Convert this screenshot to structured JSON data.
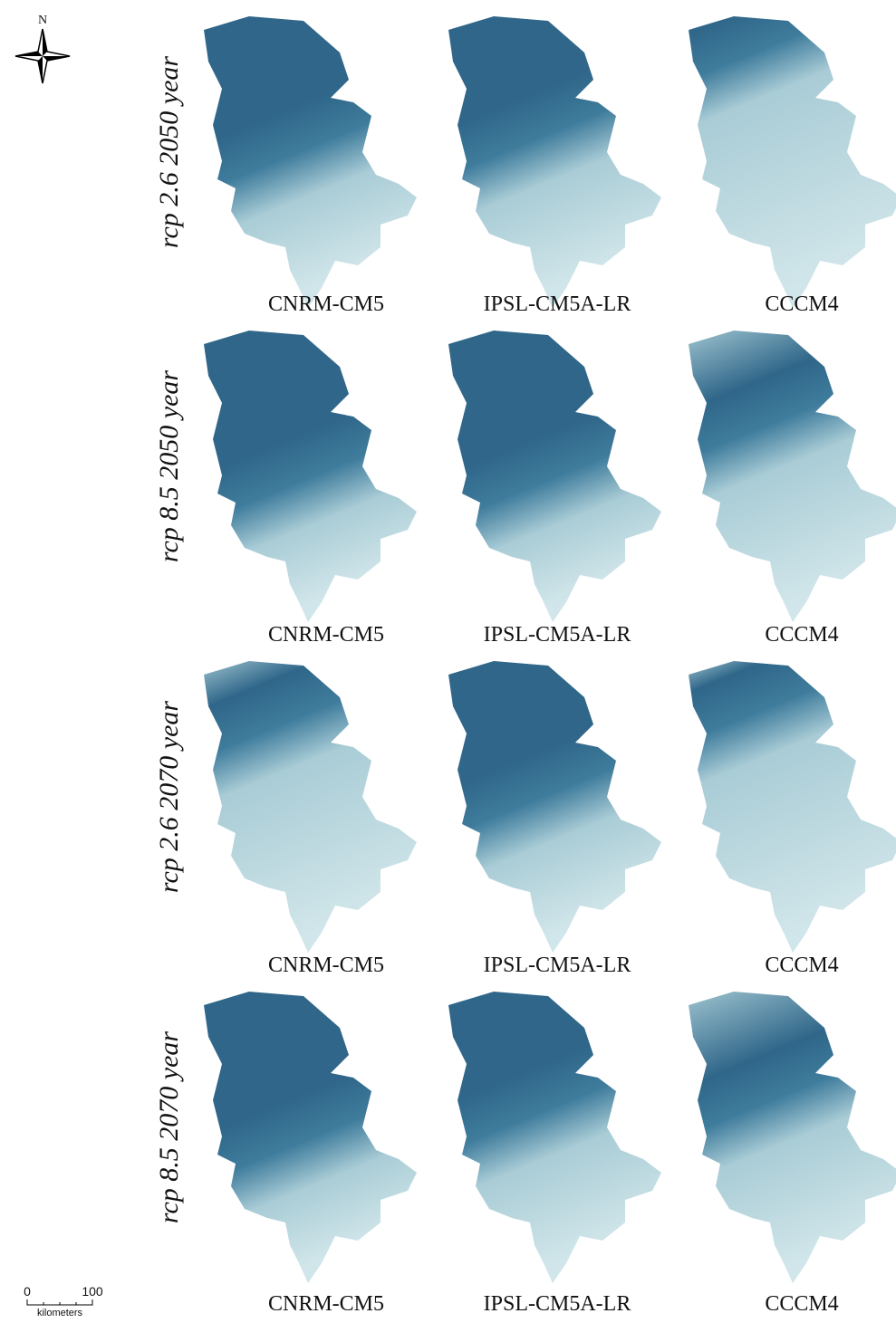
{
  "compass": {
    "label": "N"
  },
  "scale_bar": {
    "start": "0",
    "end": "100",
    "unit": "kilometers"
  },
  "rows": [
    {
      "label": "rcp 2.6 2050 year",
      "models": [
        "CNRM-CM5",
        "IPSL-CM5A-LR",
        "CCCM4"
      ]
    },
    {
      "label": "rcp 8.5 2050 year",
      "models": [
        "CNRM-CM5",
        "IPSL-CM5A-LR",
        "CCCM4"
      ]
    },
    {
      "label": "rcp 2.6 2070 year",
      "models": [
        "CNRM-CM5",
        "IPSL-CM5A-LR",
        "CCCM4"
      ]
    },
    {
      "label": "rcp 8.5 2070 year",
      "models": [
        "CNRM-CM5",
        "IPSL-CM5A-LR",
        "CCCM4"
      ]
    }
  ]
}
